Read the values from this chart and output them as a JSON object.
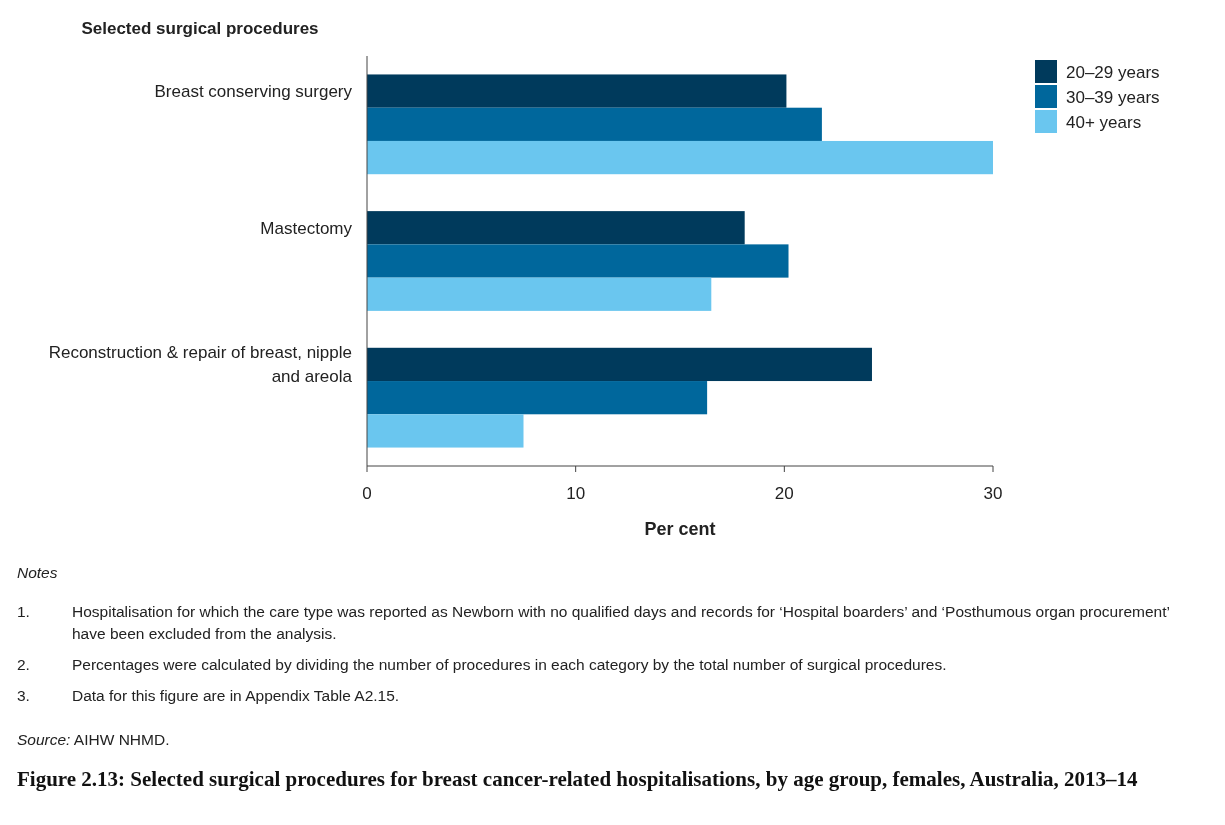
{
  "chart_data": {
    "type": "bar",
    "orientation": "horizontal",
    "title": "Figure 2.13: Selected surgical procedures for breast cancer-related hospitalisations, by age group, females, Australia, 2013–14",
    "ylabel": "Selected surgical procedures",
    "xlabel": "Per cent",
    "categories": [
      "Breast conserving surgery",
      "Mastectomy",
      "Reconstruction & repair of breast, nipple and areola"
    ],
    "series": [
      {
        "name": "20–29 years",
        "color": "#003a5c",
        "values": [
          20.1,
          18.1,
          24.2
        ]
      },
      {
        "name": "30–39 years",
        "color": "#00679c",
        "values": [
          21.8,
          20.2,
          16.3
        ]
      },
      {
        "name": "40+ years",
        "color": "#6ac6ef",
        "values": [
          30.0,
          16.5,
          7.5
        ]
      }
    ],
    "xlim": [
      0,
      30
    ],
    "xticks": [
      0,
      10,
      20,
      30
    ],
    "grid": false,
    "legend": "top right",
    "annotations": [
      "Notes",
      "1. Hospitalisation for which the care type was reported as Newborn with no qualified days and records for ‘Hospital boarders’ and ‘Posthumous organ procurement’ have been excluded from the analysis.",
      "2. Percentages were calculated by dividing the number of procedures in each category by the total number of surgical procedures.",
      "3. Data for this figure are in Appendix Table A2.15.",
      "Source: AIHW NHMD."
    ]
  }
}
